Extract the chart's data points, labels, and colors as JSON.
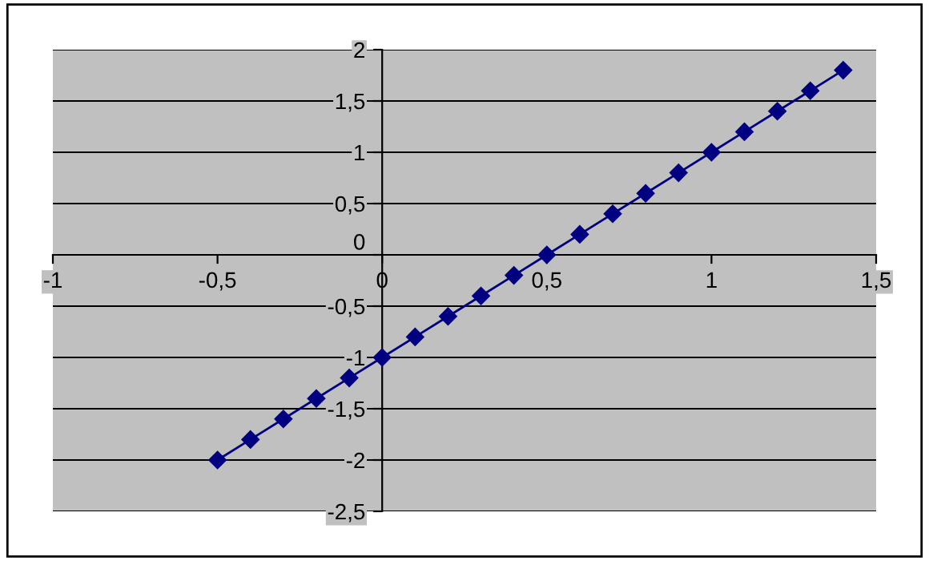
{
  "chart_data": {
    "type": "line",
    "x": [
      -0.5,
      -0.4,
      -0.3,
      -0.2,
      -0.1,
      0,
      0.1,
      0.2,
      0.3,
      0.4,
      0.5,
      0.6,
      0.7,
      0.8,
      0.9,
      1.0,
      1.1,
      1.2,
      1.3,
      1.4
    ],
    "series": [
      {
        "color": "#000080",
        "values": [
          -2,
          -1.8,
          -1.6,
          -1.4,
          -1.2,
          -1,
          -0.8,
          -0.6,
          -0.4,
          -0.2,
          0,
          0.2,
          0.4,
          0.6,
          0.8,
          1,
          1.2,
          1.4,
          1.6,
          1.8
        ]
      }
    ],
    "xlim": [
      -1,
      1.5
    ],
    "xticks": [
      {
        "value": -1,
        "label": "-1"
      },
      {
        "value": -0.5,
        "label": "-0,5"
      },
      0,
      {
        "value": 0.5,
        "label": "0,5"
      },
      1,
      {
        "value": 1.5,
        "label": "1,5"
      }
    ],
    "ylim": [
      -2.5,
      2
    ],
    "yticks": [
      {
        "value": -2.5,
        "label": "-2,5"
      },
      {
        "value": -2,
        "label": "-2"
      },
      {
        "value": -1.5,
        "label": "-1,5"
      },
      {
        "value": -1,
        "label": "-1"
      },
      {
        "value": -0.5,
        "label": "-0,5"
      },
      0,
      {
        "value": 0.5,
        "label": "0,5"
      },
      1,
      {
        "value": 1.5,
        "label": "1,5"
      },
      2
    ],
    "grid": "y",
    "marker": "diamond",
    "line_style": "solid",
    "legend": false
  }
}
